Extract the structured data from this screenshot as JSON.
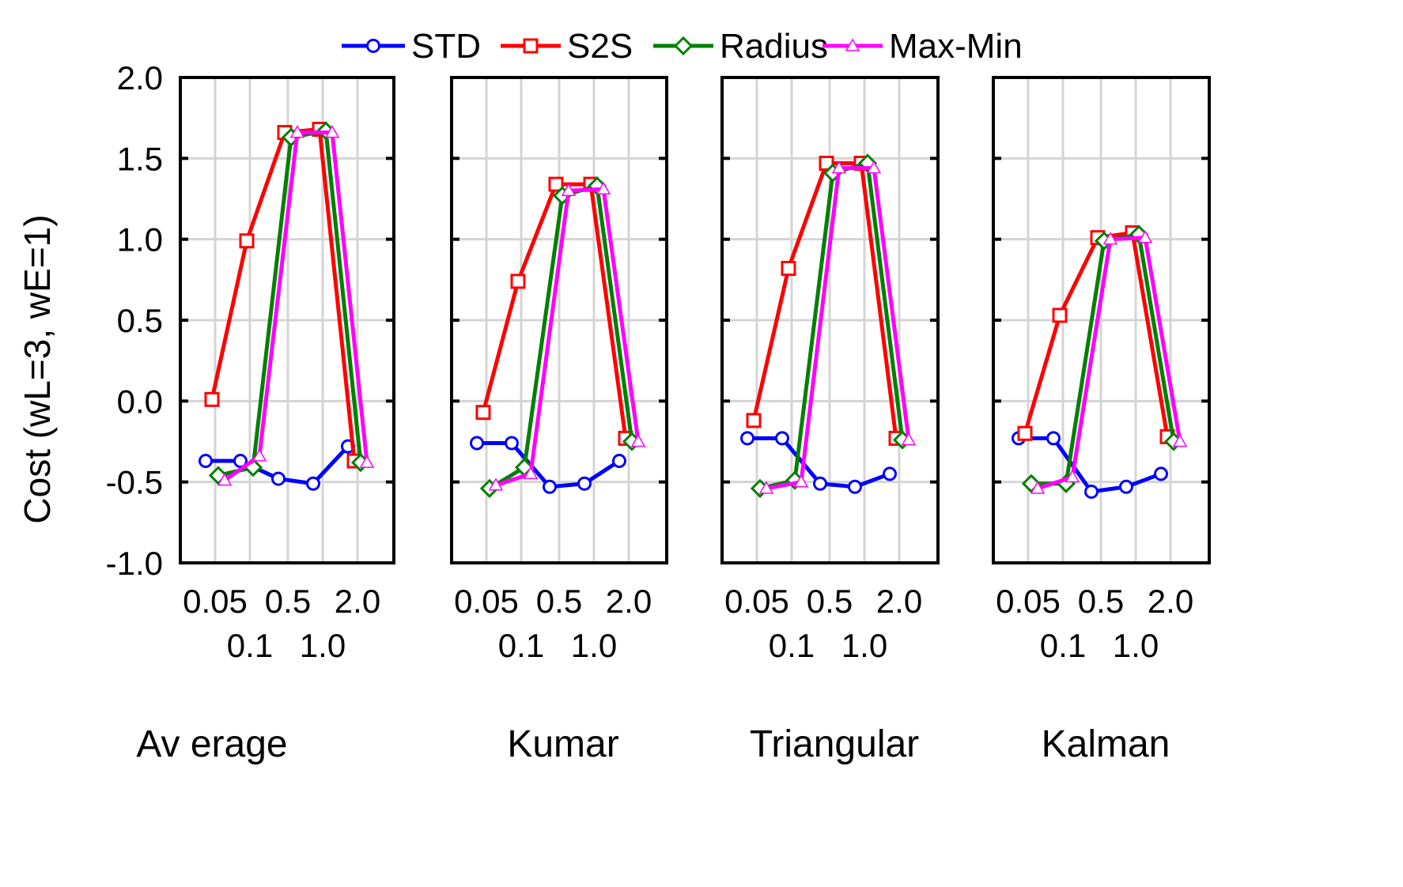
{
  "chart_data": {
    "type": "line",
    "ylabel": "Cost (wL=3, wE=1)",
    "ylim": [
      -1.0,
      2.0
    ],
    "yticks": [
      "2.0",
      "1.5",
      "1.0",
      "0.5",
      "0.0",
      "-0.5",
      "-1.0"
    ],
    "ytick_values": [
      2.0,
      1.5,
      1.0,
      0.5,
      0.0,
      -0.5,
      -1.0
    ],
    "categories": [
      "0.05",
      "0.1",
      "0.5",
      "1.0",
      "2.0"
    ],
    "grid": true,
    "legend": {
      "placement": "top-center",
      "entries": [
        "STD",
        "S2S",
        "Radius",
        "Max-Min"
      ]
    },
    "series_style": [
      {
        "name": "STD",
        "color": "#0000ff",
        "marker": "circle"
      },
      {
        "name": "S2S",
        "color": "#ff0000",
        "marker": "square"
      },
      {
        "name": "Radius",
        "color": "#008000",
        "marker": "diamond"
      },
      {
        "name": "Max-Min",
        "color": "#ff00ff",
        "marker": "triangle"
      }
    ],
    "panels": [
      {
        "title": "Av erage",
        "series": [
          {
            "name": "STD",
            "values": [
              -0.37,
              -0.37,
              -0.48,
              -0.51,
              -0.28
            ]
          },
          {
            "name": "S2S",
            "values": [
              0.01,
              0.99,
              1.66,
              1.68,
              -0.37
            ]
          },
          {
            "name": "Radius",
            "values": [
              -0.46,
              -0.41,
              1.63,
              1.67,
              -0.38
            ]
          },
          {
            "name": "Max-Min",
            "values": [
              -0.49,
              -0.34,
              1.66,
              1.66,
              -0.38
            ]
          }
        ]
      },
      {
        "title": "Kumar",
        "series": [
          {
            "name": "STD",
            "values": [
              -0.26,
              -0.26,
              -0.53,
              -0.51,
              -0.37
            ]
          },
          {
            "name": "S2S",
            "values": [
              -0.07,
              0.74,
              1.34,
              1.34,
              -0.23
            ]
          },
          {
            "name": "Radius",
            "values": [
              -0.54,
              -0.41,
              1.27,
              1.33,
              -0.25
            ]
          },
          {
            "name": "Max-Min",
            "values": [
              -0.52,
              -0.45,
              1.3,
              1.31,
              -0.25
            ]
          }
        ]
      },
      {
        "title": "Triangular",
        "series": [
          {
            "name": "STD",
            "values": [
              -0.23,
              -0.23,
              -0.51,
              -0.53,
              -0.45
            ]
          },
          {
            "name": "S2S",
            "values": [
              -0.12,
              0.82,
              1.47,
              1.47,
              -0.23
            ]
          },
          {
            "name": "Radius",
            "values": [
              -0.54,
              -0.49,
              1.41,
              1.47,
              -0.24
            ]
          },
          {
            "name": "Max-Min",
            "values": [
              -0.54,
              -0.5,
              1.44,
              1.44,
              -0.24
            ]
          }
        ]
      },
      {
        "title": "Kalman",
        "series": [
          {
            "name": "STD",
            "values": [
              -0.23,
              -0.23,
              -0.56,
              -0.53,
              -0.45
            ]
          },
          {
            "name": "S2S",
            "values": [
              -0.2,
              0.53,
              1.01,
              1.04,
              -0.22
            ]
          },
          {
            "name": "Radius",
            "values": [
              -0.51,
              -0.51,
              0.99,
              1.03,
              -0.25
            ]
          },
          {
            "name": "Max-Min",
            "values": [
              -0.54,
              -0.47,
              1.0,
              1.01,
              -0.25
            ]
          }
        ]
      }
    ]
  }
}
